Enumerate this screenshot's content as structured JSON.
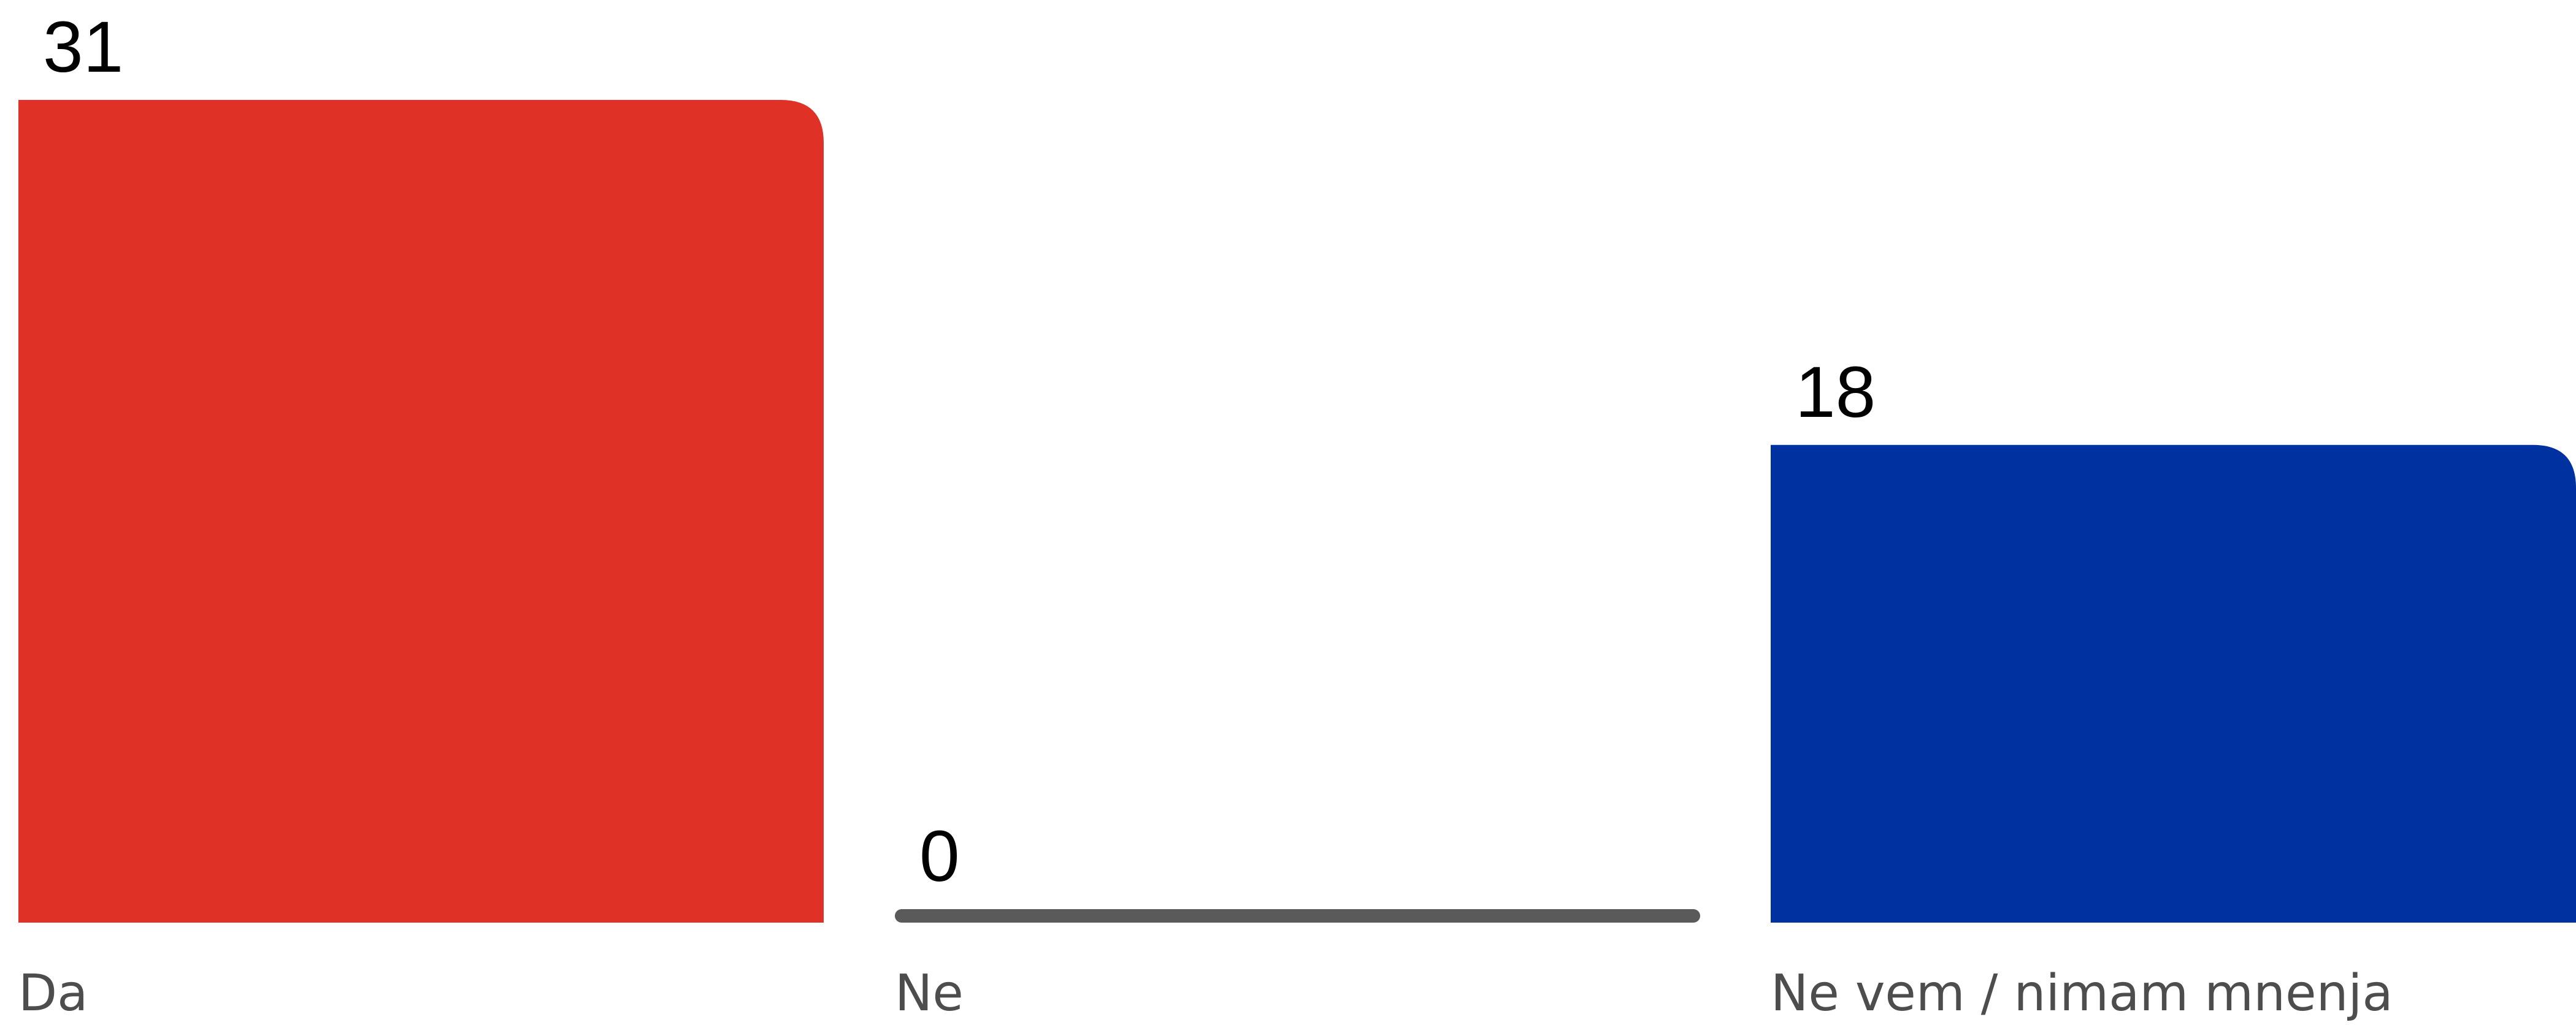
{
  "chart_data": {
    "type": "bar",
    "categories": [
      "Da",
      "Ne",
      "Ne vem / nimam mnenja"
    ],
    "values": [
      31,
      0,
      18
    ],
    "ylim": [
      0,
      31
    ],
    "grid": false,
    "legend": "none",
    "colors": [
      "#df3126",
      "#5a5a5a",
      "#0031a0"
    ]
  }
}
